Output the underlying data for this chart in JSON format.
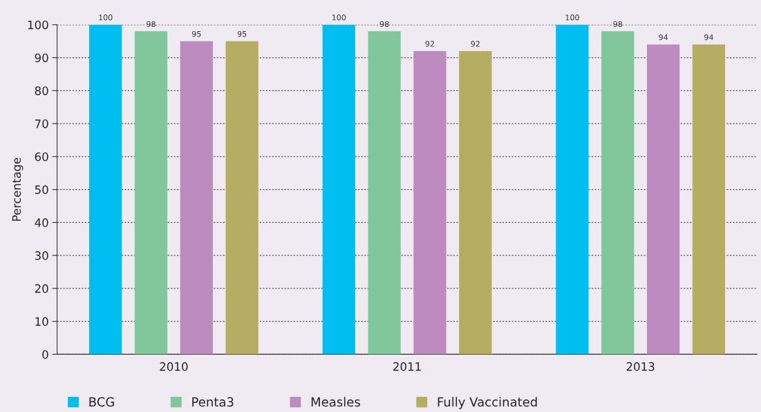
{
  "chart_data": {
    "type": "bar",
    "ylabel": "Percentage",
    "categories": [
      "2010",
      "2011",
      "2013"
    ],
    "series": [
      {
        "name": "BCG",
        "color": "#00bff0",
        "values": [
          100,
          100,
          100
        ]
      },
      {
        "name": "Penta3",
        "color": "#80c89c",
        "values": [
          98,
          98,
          98
        ]
      },
      {
        "name": "Measles",
        "color": "#bd8bbf",
        "values": [
          95,
          92,
          94
        ]
      },
      {
        "name": "Fully Vaccinated",
        "color": "#b5ae62",
        "values": [
          95,
          92,
          94
        ]
      }
    ],
    "ylim": [
      0,
      100
    ],
    "yticks": [
      0,
      10,
      20,
      30,
      40,
      50,
      60,
      70,
      80,
      90,
      100
    ],
    "grid": "y",
    "legend": "bottom",
    "data_labels": true
  }
}
